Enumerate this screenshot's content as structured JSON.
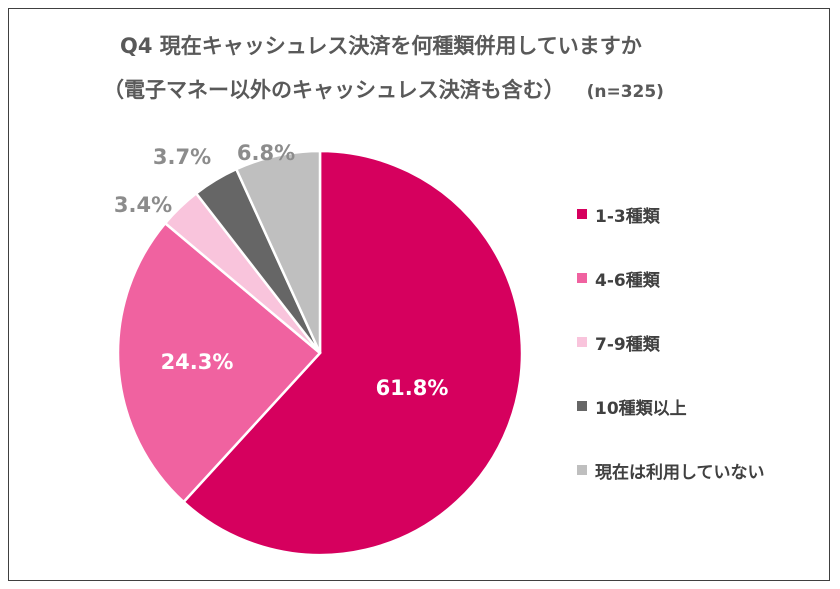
{
  "chart_data": {
    "type": "pie",
    "title": "Q4 現在キャッシュレス決済を何種類併用していますか",
    "subtitle": "（電子マネー以外のキャッシュレス決済も含む）",
    "sample_size": "(n=325)",
    "legend_position": "right",
    "slices": [
      {
        "label": "1-3種類",
        "value": 61.8,
        "value_label": "61.8%",
        "color": "#d6005e"
      },
      {
        "label": "4-6種類",
        "value": 24.3,
        "value_label": "24.3%",
        "color": "#f062a0"
      },
      {
        "label": "7-9種類",
        "value": 3.4,
        "value_label": "3.4%",
        "color": "#f9c4dc"
      },
      {
        "label": "10種類以上",
        "value": 3.7,
        "value_label": "3.7%",
        "color": "#666666"
      },
      {
        "label": "現在は利用していない",
        "value": 6.8,
        "value_label": "6.8%",
        "color": "#bfbfbf"
      }
    ]
  }
}
